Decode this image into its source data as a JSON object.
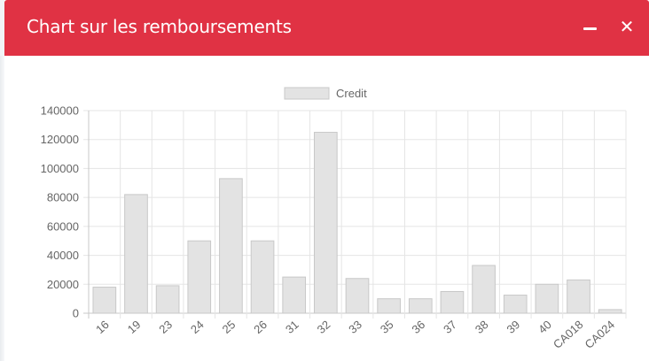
{
  "window": {
    "title": "Chart sur les remboursements",
    "close_glyph": "✕"
  },
  "colors": {
    "header": "#e03244",
    "bar_fill": "#e3e3e3",
    "bar_stroke": "#c8c8c8",
    "grid": "#e5e5e5"
  },
  "chart_data": {
    "type": "bar",
    "categories": [
      "16",
      "19",
      "23",
      "24",
      "25",
      "26",
      "31",
      "32",
      "33",
      "35",
      "36",
      "37",
      "38",
      "39",
      "40",
      "CA018",
      "CA024"
    ],
    "series": [
      {
        "name": "Credit",
        "values": [
          18000,
          82000,
          19000,
          50000,
          93000,
          50000,
          25000,
          125000,
          24000,
          10000,
          10000,
          15000,
          33000,
          12500,
          20000,
          23000,
          2500
        ]
      }
    ],
    "ylim": [
      0,
      140000
    ],
    "yticks": [
      0,
      20000,
      40000,
      60000,
      80000,
      100000,
      120000,
      140000
    ],
    "grid": true,
    "legend_position": "top-center",
    "xlabel": "",
    "ylabel": ""
  }
}
